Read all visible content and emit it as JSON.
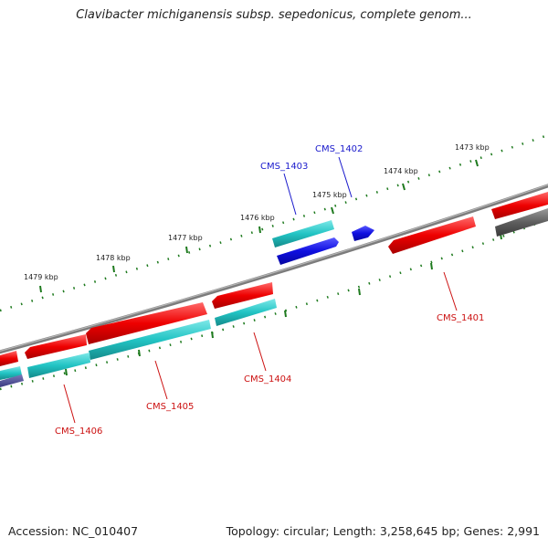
{
  "title": "Clavibacter michiganensis subsp. sepedonicus, complete genom...",
  "footer": {
    "accession_label": "Accession: NC_010407",
    "summary": "Topology: circular; Length: 3,258,645 bp; Genes: 2,991"
  },
  "colors": {
    "backbone": "#888888",
    "tick": "#1e7a1e",
    "forward_gene": "#1010dd",
    "reverse_gene": "#dd0000",
    "rna_feature": "#20c0c0",
    "pseudo_feature": "#606060",
    "forward_label": "#1a1acc",
    "reverse_label": "#cc1111"
  },
  "scale_labels": [
    "1473 kbp",
    "1474 kbp",
    "1475 kbp",
    "1476 kbp",
    "1477 kbp",
    "1478 kbp",
    "1479 kbp"
  ],
  "genes": [
    {
      "name": "CMS_1402",
      "strand": "forward"
    },
    {
      "name": "CMS_1403",
      "strand": "forward"
    },
    {
      "name": "CMS_1401",
      "strand": "reverse"
    },
    {
      "name": "CMS_1404",
      "strand": "reverse"
    },
    {
      "name": "CMS_1405",
      "strand": "reverse"
    },
    {
      "name": "CMS_1406",
      "strand": "reverse"
    }
  ]
}
